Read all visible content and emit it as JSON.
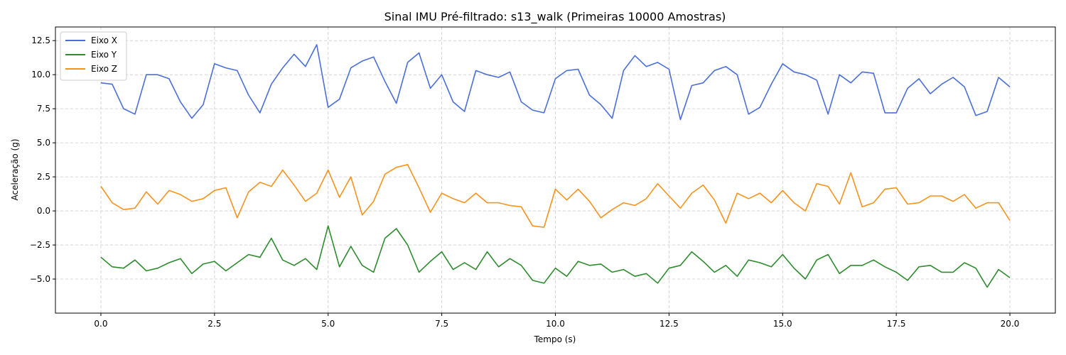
{
  "chart_data": {
    "type": "line",
    "title": "Sinal IMU Pré-filtrado: s13_walk (Primeiras 10000 Amostras)",
    "xlabel": "Tempo (s)",
    "ylabel": "Aceleração (g)",
    "xlim": [
      -1.0,
      21.0
    ],
    "ylim": [
      -7.5,
      13.5
    ],
    "xticks": [
      0.0,
      2.5,
      5.0,
      7.5,
      10.0,
      12.5,
      15.0,
      17.5,
      20.0
    ],
    "yticks": [
      -5.0,
      -2.5,
      0.0,
      2.5,
      5.0,
      7.5,
      10.0,
      12.5
    ],
    "xtick_labels": [
      "0.0",
      "2.5",
      "5.0",
      "7.5",
      "10.0",
      "12.5",
      "15.0",
      "17.5",
      "20.0"
    ],
    "ytick_labels": [
      "−5.0",
      "−2.5",
      "0.0",
      "2.5",
      "5.0",
      "7.5",
      "10.0",
      "12.5"
    ],
    "grid": true,
    "legend_position": "top-left",
    "colors": {
      "x_axis": "#4a6fd8",
      "y_axis": "#2e8b2e",
      "z_axis": "#f5931f",
      "grid": "#cccccc"
    },
    "series": [
      {
        "name": "Eixo X",
        "x": [
          0.0,
          0.25,
          0.5,
          0.75,
          1.0,
          1.25,
          1.5,
          1.75,
          2.0,
          2.25,
          2.5,
          2.75,
          3.0,
          3.25,
          3.5,
          3.75,
          4.0,
          4.25,
          4.5,
          4.75,
          5.0,
          5.25,
          5.5,
          5.75,
          6.0,
          6.25,
          6.5,
          6.75,
          7.0,
          7.25,
          7.5,
          7.75,
          8.0,
          8.25,
          8.5,
          8.75,
          9.0,
          9.25,
          9.5,
          9.75,
          10.0,
          10.25,
          10.5,
          10.75,
          11.0,
          11.25,
          11.5,
          11.75,
          12.0,
          12.25,
          12.5,
          12.75,
          13.0,
          13.25,
          13.5,
          13.75,
          14.0,
          14.25,
          14.5,
          14.75,
          15.0,
          15.25,
          15.5,
          15.75,
          16.0,
          16.25,
          16.5,
          16.75,
          17.0,
          17.25,
          17.5,
          17.75,
          18.0,
          18.25,
          18.5,
          18.75,
          19.0,
          19.25,
          19.5,
          19.75,
          20.0
        ],
        "y": [
          9.4,
          9.3,
          7.5,
          7.1,
          10.0,
          10.0,
          9.7,
          8.0,
          6.8,
          7.8,
          10.8,
          10.5,
          10.3,
          8.5,
          7.2,
          9.3,
          10.5,
          11.5,
          10.6,
          12.2,
          7.6,
          8.2,
          10.5,
          11.0,
          11.3,
          9.5,
          7.9,
          10.9,
          11.6,
          9.0,
          10.0,
          8.0,
          7.3,
          10.3,
          10.0,
          9.8,
          10.2,
          8.0,
          7.4,
          7.2,
          9.7,
          10.3,
          10.4,
          8.5,
          7.8,
          6.8,
          10.3,
          11.4,
          10.6,
          10.9,
          10.4,
          6.7,
          9.2,
          9.4,
          10.3,
          10.6,
          10.0,
          7.1,
          7.6,
          9.3,
          10.8,
          10.2,
          10.0,
          9.6,
          7.1,
          10.0,
          9.4,
          10.2,
          10.1,
          7.2,
          7.2,
          9.0,
          9.7,
          8.6,
          9.3,
          9.8,
          9.1,
          7.0,
          7.3,
          9.8,
          9.1
        ]
      },
      {
        "name": "Eixo Y",
        "x": [
          0.0,
          0.25,
          0.5,
          0.75,
          1.0,
          1.25,
          1.5,
          1.75,
          2.0,
          2.25,
          2.5,
          2.75,
          3.0,
          3.25,
          3.5,
          3.75,
          4.0,
          4.25,
          4.5,
          4.75,
          5.0,
          5.25,
          5.5,
          5.75,
          6.0,
          6.25,
          6.5,
          6.75,
          7.0,
          7.25,
          7.5,
          7.75,
          8.0,
          8.25,
          8.5,
          8.75,
          9.0,
          9.25,
          9.5,
          9.75,
          10.0,
          10.25,
          10.5,
          10.75,
          11.0,
          11.25,
          11.5,
          11.75,
          12.0,
          12.25,
          12.5,
          12.75,
          13.0,
          13.25,
          13.5,
          13.75,
          14.0,
          14.25,
          14.5,
          14.75,
          15.0,
          15.25,
          15.5,
          15.75,
          16.0,
          16.25,
          16.5,
          16.75,
          17.0,
          17.25,
          17.5,
          17.75,
          18.0,
          18.25,
          18.5,
          18.75,
          19.0,
          19.25,
          19.5,
          19.75,
          20.0
        ],
        "y": [
          -3.4,
          -4.1,
          -4.2,
          -3.6,
          -4.4,
          -4.2,
          -3.8,
          -3.5,
          -4.6,
          -3.9,
          -3.7,
          -4.4,
          -3.8,
          -3.2,
          -3.4,
          -2.0,
          -3.6,
          -4.0,
          -3.5,
          -4.3,
          -1.1,
          -4.1,
          -2.6,
          -4.0,
          -4.5,
          -2.0,
          -1.3,
          -2.5,
          -4.5,
          -3.7,
          -3.0,
          -4.3,
          -3.8,
          -4.3,
          -3.0,
          -4.1,
          -3.5,
          -4.0,
          -5.1,
          -5.3,
          -4.2,
          -4.8,
          -3.7,
          -4.0,
          -3.9,
          -4.5,
          -4.3,
          -4.8,
          -4.6,
          -5.3,
          -4.2,
          -4.0,
          -3.0,
          -3.7,
          -4.5,
          -4.0,
          -4.8,
          -3.6,
          -3.8,
          -4.1,
          -3.2,
          -4.2,
          -5.0,
          -3.6,
          -3.2,
          -4.6,
          -4.0,
          -4.0,
          -3.6,
          -4.1,
          -4.5,
          -5.1,
          -4.1,
          -4.0,
          -4.5,
          -4.5,
          -3.8,
          -4.2,
          -5.6,
          -4.3,
          -4.9
        ]
      },
      {
        "name": "Eixo Z",
        "x": [
          0.0,
          0.25,
          0.5,
          0.75,
          1.0,
          1.25,
          1.5,
          1.75,
          2.0,
          2.25,
          2.5,
          2.75,
          3.0,
          3.25,
          3.5,
          3.75,
          4.0,
          4.25,
          4.5,
          4.75,
          5.0,
          5.25,
          5.5,
          5.75,
          6.0,
          6.25,
          6.5,
          6.75,
          7.0,
          7.25,
          7.5,
          7.75,
          8.0,
          8.25,
          8.5,
          8.75,
          9.0,
          9.25,
          9.5,
          9.75,
          10.0,
          10.25,
          10.5,
          10.75,
          11.0,
          11.25,
          11.5,
          11.75,
          12.0,
          12.25,
          12.5,
          12.75,
          13.0,
          13.25,
          13.5,
          13.75,
          14.0,
          14.25,
          14.5,
          14.75,
          15.0,
          15.25,
          15.5,
          15.75,
          16.0,
          16.25,
          16.5,
          16.75,
          17.0,
          17.25,
          17.5,
          17.75,
          18.0,
          18.25,
          18.5,
          18.75,
          19.0,
          19.25,
          19.5,
          19.75,
          20.0
        ],
        "y": [
          1.8,
          0.6,
          0.1,
          0.2,
          1.4,
          0.5,
          1.5,
          1.2,
          0.7,
          0.9,
          1.5,
          1.7,
          -0.5,
          1.4,
          2.1,
          1.8,
          3.0,
          1.9,
          0.7,
          1.3,
          3.0,
          1.0,
          2.5,
          -0.3,
          0.7,
          2.7,
          3.2,
          3.4,
          1.7,
          -0.1,
          1.3,
          0.9,
          0.6,
          1.3,
          0.6,
          0.6,
          0.4,
          0.3,
          -1.1,
          -1.2,
          1.6,
          0.8,
          1.6,
          0.7,
          -0.5,
          0.1,
          0.6,
          0.4,
          0.9,
          2.0,
          1.1,
          0.2,
          1.3,
          1.9,
          0.8,
          -0.9,
          1.3,
          0.9,
          1.3,
          0.6,
          1.5,
          0.6,
          0.0,
          2.0,
          1.8,
          0.5,
          2.8,
          0.3,
          0.6,
          1.6,
          1.7,
          0.5,
          0.6,
          1.1,
          1.1,
          0.7,
          1.2,
          0.2,
          0.6,
          0.6,
          -0.7
        ]
      }
    ]
  }
}
